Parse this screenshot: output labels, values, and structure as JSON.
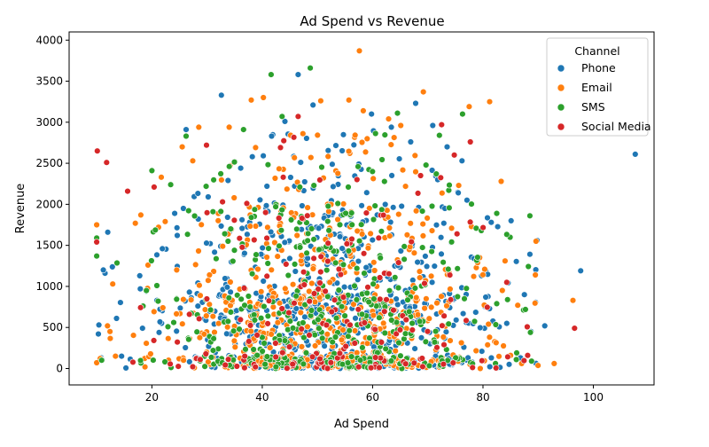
{
  "chart_data": {
    "type": "scatter",
    "title": "Ad Spend vs Revenue",
    "xlabel": "Ad Spend",
    "ylabel": "Revenue",
    "xlim": [
      5,
      111
    ],
    "ylim": [
      -200,
      4100
    ],
    "xticks": [
      20,
      40,
      60,
      80,
      100
    ],
    "yticks": [
      0,
      500,
      1000,
      1500,
      2000,
      2500,
      3000,
      3500,
      4000
    ],
    "grid": false,
    "legend": {
      "title": "Channel",
      "placement": "top-right"
    },
    "marker": "circle",
    "point_count_per_series": [
      720,
      560,
      420,
      160
    ],
    "series": [
      {
        "name": "Phone",
        "color": "#1f77b4",
        "values": [
          [
            107.6,
            2610
          ],
          [
            97.7,
            1190
          ],
          [
            91.2,
            520
          ],
          [
            89.8,
            1560
          ],
          [
            85.1,
            1800
          ],
          [
            87.5,
            900
          ],
          [
            81.5,
            1780
          ],
          [
            46.5,
            3580
          ],
          [
            32.6,
            3330
          ],
          [
            26.2,
            2910
          ],
          [
            49.2,
            3210
          ],
          [
            67.8,
            3230
          ],
          [
            70.9,
            2960
          ],
          [
            73.5,
            2700
          ],
          [
            76.2,
            2530
          ],
          [
            12.0,
            1660
          ],
          [
            10.4,
            530
          ],
          [
            10.3,
            420
          ],
          [
            11.2,
            1200
          ],
          [
            13.6,
            610
          ],
          [
            14.5,
            150
          ],
          [
            17.8,
            1130
          ],
          [
            17.9,
            970
          ],
          [
            18.3,
            490
          ],
          [
            21.3,
            440
          ],
          [
            21.9,
            1460
          ],
          [
            24.6,
            1620
          ],
          [
            25.7,
            1950
          ],
          [
            26.8,
            930
          ],
          [
            28.4,
            1820
          ],
          [
            30.2,
            2090
          ],
          [
            33.8,
            2290
          ],
          [
            36.1,
            2440
          ],
          [
            38.2,
            2580
          ],
          [
            41.7,
            2830
          ],
          [
            44.1,
            3010
          ],
          [
            57.5,
            2490
          ],
          [
            59.8,
            3100
          ],
          [
            63.4,
            2940
          ],
          [
            66.9,
            2760
          ],
          [
            71.8,
            2300
          ],
          [
            73.1,
            1950
          ],
          [
            78.4,
            1340
          ],
          [
            80.5,
            870
          ],
          [
            84.3,
            550
          ],
          [
            86.8,
            130
          ],
          [
            88.7,
            450
          ],
          [
            79.8,
            210
          ]
        ]
      },
      {
        "name": "Email",
        "color": "#ff7f0e",
        "values": [
          [
            57.6,
            3870
          ],
          [
            69.2,
            3370
          ],
          [
            81.2,
            3250
          ],
          [
            77.5,
            3190
          ],
          [
            83.3,
            2280
          ],
          [
            96.3,
            830
          ],
          [
            89.6,
            1550
          ],
          [
            89.5,
            1140
          ],
          [
            86.3,
            770
          ],
          [
            85.0,
            160
          ],
          [
            92.9,
            60
          ],
          [
            10.0,
            1750
          ],
          [
            10.0,
            70
          ],
          [
            12.9,
            1030
          ],
          [
            12.4,
            450
          ],
          [
            13.4,
            150
          ],
          [
            17.0,
            1770
          ],
          [
            18.0,
            1870
          ],
          [
            19.3,
            1260
          ],
          [
            21.7,
            2330
          ],
          [
            22.0,
            740
          ],
          [
            25.5,
            2700
          ],
          [
            27.4,
            2530
          ],
          [
            28.5,
            2940
          ],
          [
            34.0,
            2940
          ],
          [
            38.0,
            3270
          ],
          [
            40.2,
            3300
          ],
          [
            50.6,
            3260
          ],
          [
            55.7,
            3270
          ],
          [
            58.3,
            3140
          ],
          [
            62.9,
            3040
          ],
          [
            65.1,
            2960
          ],
          [
            75.6,
            2230
          ],
          [
            77.9,
            1730
          ],
          [
            79.4,
            1350
          ],
          [
            81.0,
            540
          ],
          [
            84.0,
            1310
          ],
          [
            87.0,
            60
          ],
          [
            34.9,
            2080
          ],
          [
            45.7,
            1840
          ],
          [
            52.2,
            1710
          ],
          [
            55.9,
            1400
          ],
          [
            60.4,
            830
          ],
          [
            48.5,
            940
          ],
          [
            42.8,
            560
          ]
        ]
      },
      {
        "name": "SMS",
        "color": "#2ca02c",
        "values": [
          [
            48.7,
            3660
          ],
          [
            41.6,
            3580
          ],
          [
            10.0,
            1590
          ],
          [
            10.0,
            1370
          ],
          [
            10.9,
            100
          ],
          [
            18.4,
            760
          ],
          [
            19.0,
            950
          ],
          [
            20.0,
            2410
          ],
          [
            20.9,
            1010
          ],
          [
            23.4,
            2240
          ],
          [
            26.2,
            2830
          ],
          [
            36.6,
            2910
          ],
          [
            43.6,
            3070
          ],
          [
            64.5,
            3110
          ],
          [
            72.1,
            2840
          ],
          [
            76.3,
            3100
          ],
          [
            79.7,
            1680
          ],
          [
            82.5,
            1890
          ],
          [
            88.5,
            1860
          ],
          [
            88.6,
            440
          ],
          [
            86.1,
            190
          ],
          [
            82.5,
            790
          ],
          [
            88.8,
            90
          ],
          [
            34.3,
            1700
          ],
          [
            37.8,
            750
          ],
          [
            46.8,
            2210
          ],
          [
            53.7,
            2010
          ],
          [
            56.1,
            1560
          ],
          [
            60.1,
            1030
          ],
          [
            63.3,
            660
          ],
          [
            69.5,
            1020
          ],
          [
            73.7,
            1210
          ],
          [
            31.1,
            220
          ],
          [
            41.0,
            1280
          ],
          [
            50.3,
            1450
          ]
        ]
      },
      {
        "name": "Social Media",
        "color": "#d62728",
        "values": [
          [
            10.1,
            2650
          ],
          [
            11.8,
            2510
          ],
          [
            15.6,
            2160
          ],
          [
            20.4,
            2210
          ],
          [
            10.0,
            1540
          ],
          [
            29.9,
            2720
          ],
          [
            46.5,
            3070
          ],
          [
            72.5,
            2970
          ],
          [
            74.8,
            2600
          ],
          [
            77.7,
            2760
          ],
          [
            68.7,
            2350
          ],
          [
            96.6,
            490
          ],
          [
            84.3,
            1050
          ],
          [
            88.1,
            160
          ],
          [
            75.3,
            1640
          ],
          [
            32.8,
            2030
          ],
          [
            37.2,
            2010
          ],
          [
            43.8,
            2330
          ],
          [
            47.2,
            1830
          ],
          [
            53.9,
            1210
          ],
          [
            57.4,
            720
          ],
          [
            61.1,
            1590
          ],
          [
            64.7,
            1290
          ],
          [
            67.2,
            470
          ],
          [
            26.8,
            660
          ]
        ]
      }
    ]
  }
}
